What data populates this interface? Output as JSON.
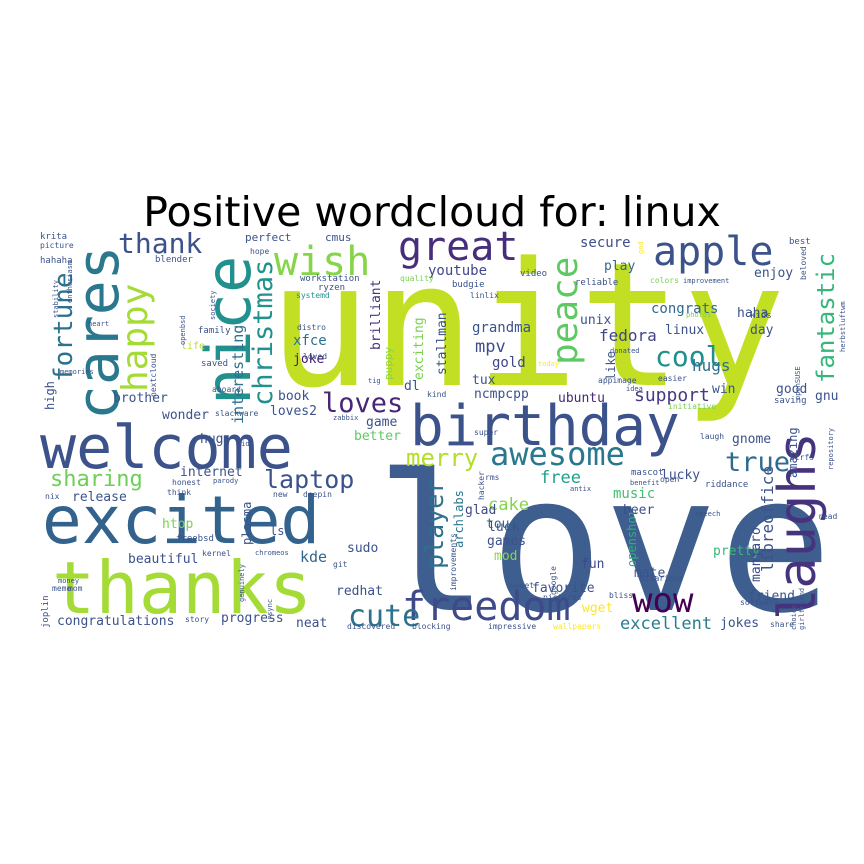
{
  "title": "Positive wordcloud for: linux",
  "words": [
    {
      "text": "unity",
      "color": "#c2df23"
    },
    {
      "text": "love",
      "color": "#3d5e8e"
    },
    {
      "text": "welcome",
      "color": "#3b528b"
    },
    {
      "text": "excited",
      "color": "#33638d"
    },
    {
      "text": "thanks",
      "color": "#a5db36"
    },
    {
      "text": "birthday",
      "color": "#3b528b"
    },
    {
      "text": "laughs",
      "color": "#46337e"
    },
    {
      "text": "nice",
      "color": "#22908d"
    },
    {
      "text": "cares",
      "color": "#2a788e"
    },
    {
      "text": "freedom",
      "color": "#3e4a89"
    },
    {
      "text": "great",
      "color": "#472d7b"
    },
    {
      "text": "apple",
      "color": "#3b528b"
    },
    {
      "text": "wish",
      "color": "#86d549"
    },
    {
      "text": "peace",
      "color": "#5ec962"
    },
    {
      "text": "happy",
      "color": "#a5db36"
    },
    {
      "text": "christmas",
      "color": "#21918c"
    },
    {
      "text": "fortune",
      "color": "#2c728e"
    },
    {
      "text": "fantastic",
      "color": "#35b779"
    },
    {
      "text": "awesome",
      "color": "#2a788e"
    },
    {
      "text": "wow",
      "color": "#440154"
    },
    {
      "text": "cute",
      "color": "#2c728e"
    },
    {
      "text": "thank",
      "color": "#3b528b"
    },
    {
      "text": "cool",
      "color": "#21908d"
    },
    {
      "text": "loves",
      "color": "#482576"
    },
    {
      "text": "laptop",
      "color": "#3b528b"
    },
    {
      "text": "sharing",
      "color": "#6ece58"
    },
    {
      "text": "merry",
      "color": "#b5de2b"
    },
    {
      "text": "true",
      "color": "#306a8e"
    },
    {
      "text": "player",
      "color": "#2e6f8e"
    },
    {
      "text": "youtube",
      "color": "#404688"
    },
    {
      "text": "mpv",
      "color": "#3d4e8a"
    },
    {
      "text": "fedora",
      "color": "#414487"
    },
    {
      "text": "support",
      "color": "#443983"
    },
    {
      "text": "excellent",
      "color": "#287d8e"
    },
    {
      "text": "interesting",
      "color": "#2d718e"
    },
    {
      "text": "grandma",
      "color": "#3a548c"
    },
    {
      "text": "libreoffice",
      "color": "#3b528b"
    },
    {
      "text": "cake",
      "color": "#84d44b"
    },
    {
      "text": "gold",
      "color": "#404688"
    },
    {
      "text": "hugs",
      "color": "#2d708e"
    },
    {
      "text": "xfce",
      "color": "#2d708e"
    },
    {
      "text": "stallman",
      "color": "#3c4f8a"
    },
    {
      "text": "brilliant",
      "color": "#46327e"
    },
    {
      "text": "exciting",
      "color": "#7ad151"
    },
    {
      "text": "joke",
      "color": "#481b6d"
    },
    {
      "text": "puppy",
      "color": "#8bd646"
    },
    {
      "text": "unix",
      "color": "#3b528b"
    },
    {
      "text": "linux",
      "color": "#3b528b"
    },
    {
      "text": "congrats",
      "color": "#31688e"
    },
    {
      "text": "play",
      "color": "#31688e"
    },
    {
      "text": "secure",
      "color": "#3e4c8a"
    },
    {
      "text": "free",
      "color": "#1fa088"
    },
    {
      "text": "touch",
      "color": "#32658e"
    },
    {
      "text": "music",
      "color": "#44bf70"
    },
    {
      "text": "glad",
      "color": "#3f4889"
    },
    {
      "text": "archlabs",
      "color": "#2a768e"
    },
    {
      "text": "luck",
      "color": "#3b528b"
    },
    {
      "text": "games",
      "color": "#3b528b"
    },
    {
      "text": "mod",
      "color": "#8bd646"
    },
    {
      "text": "fun",
      "color": "#3f4889"
    },
    {
      "text": "openshot",
      "color": "#2db27d"
    },
    {
      "text": "beer",
      "color": "#3b528b"
    },
    {
      "text": "lucky",
      "color": "#3b528b"
    },
    {
      "text": "pretty",
      "color": "#38b977"
    },
    {
      "text": "mate",
      "color": "#3b528b"
    },
    {
      "text": "manjaro",
      "color": "#3e4a89"
    },
    {
      "text": "friend",
      "color": "#3b528b"
    },
    {
      "text": "jokes",
      "color": "#3b528b"
    },
    {
      "text": "favorite",
      "color": "#3b528b"
    },
    {
      "text": "wget",
      "color": "#fde725"
    },
    {
      "text": "ubuntu",
      "color": "#482878"
    },
    {
      "text": "tux",
      "color": "#3b528b"
    },
    {
      "text": "ncmpcpp",
      "color": "#3b528b"
    },
    {
      "text": "dl",
      "color": "#3b528b"
    },
    {
      "text": "loves2",
      "color": "#3b528b"
    },
    {
      "text": "debian",
      "color": "#3b528b"
    },
    {
      "text": "game",
      "color": "#3b528b"
    },
    {
      "text": "better",
      "color": "#5ec962"
    },
    {
      "text": "sudo",
      "color": "#3b528b"
    },
    {
      "text": "redhat",
      "color": "#3b528b"
    },
    {
      "text": "kde",
      "color": "#31688e"
    },
    {
      "text": "neat",
      "color": "#3b528b"
    },
    {
      "text": "progress",
      "color": "#3b528b"
    },
    {
      "text": "congratulations",
      "color": "#3b528b"
    },
    {
      "text": "release",
      "color": "#3b528b"
    },
    {
      "text": "internet",
      "color": "#3b528b"
    },
    {
      "text": "hug",
      "color": "#3b528b"
    },
    {
      "text": "htop",
      "color": "#7ad151"
    },
    {
      "text": "beautiful",
      "color": "#3b528b"
    },
    {
      "text": "plasma",
      "color": "#3b528b"
    },
    {
      "text": "ls",
      "color": "#3b528b"
    },
    {
      "text": "book",
      "color": "#3b528b"
    },
    {
      "text": "wonder",
      "color": "#3b528b"
    },
    {
      "text": "brother",
      "color": "#3b528b"
    },
    {
      "text": "high",
      "color": "#3b528b"
    },
    {
      "text": "good",
      "color": "#3b528b"
    },
    {
      "text": "gnu",
      "color": "#3b528b"
    },
    {
      "text": "win",
      "color": "#3b528b"
    },
    {
      "text": "day",
      "color": "#3b528b"
    },
    {
      "text": "haha",
      "color": "#3b528b"
    },
    {
      "text": "enjoy",
      "color": "#3b528b"
    },
    {
      "text": "amazing",
      "color": "#3b528b"
    },
    {
      "text": "gnome",
      "color": "#3b528b"
    },
    {
      "text": "like",
      "color": "#3b528b"
    }
  ],
  "small_words": [
    "perfect",
    "cmus",
    "blender",
    "workstation",
    "ryzen",
    "systemd",
    "quality",
    "budgie",
    "linlix",
    "video",
    "reliable",
    "colors",
    "improvement",
    "best",
    "beloved",
    "kids",
    "photos",
    "donated",
    "easier",
    "appimage",
    "today",
    "kind",
    "idea",
    "initiative",
    "saving",
    "laugh",
    "btrfs",
    "riddance",
    "benefit",
    "open",
    "mascot",
    "antix",
    "rms",
    "hacker",
    "sweet",
    "pictures",
    "bliss",
    "google",
    "improvements",
    "blocking",
    "impressive",
    "wallpapers",
    "discovered",
    "story",
    "genuinely",
    "money",
    "memories",
    "life",
    "family",
    "saved",
    "aboard",
    "nextcloud",
    "openbsd",
    "society",
    "heart",
    "enthusiasm",
    "stability",
    "krita",
    "picture",
    "hahaha",
    "mom",
    "meme",
    "joplin",
    "nix",
    "freebsd",
    "think",
    "honest",
    "kernel",
    "chromeos",
    "git",
    "rsync",
    "parody",
    "new",
    "deepin",
    "slackware",
    "zabbix",
    "super",
    "speech",
    "software",
    "share",
    "choice",
    "girlfriend",
    "repository",
    "herbstluftwm",
    "openSUSE",
    "hilarious",
    "distro",
    "loved",
    "tig",
    "god",
    "read",
    "kid",
    "hope"
  ]
}
